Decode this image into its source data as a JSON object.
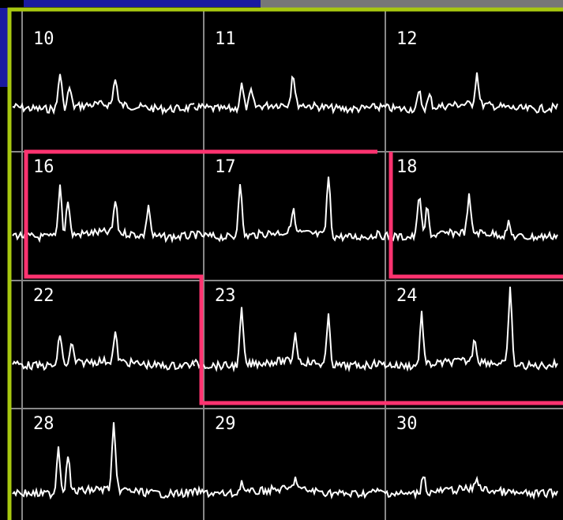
{
  "cells": [
    {
      "label": "10"
    },
    {
      "label": "11"
    },
    {
      "label": "12"
    },
    {
      "label": "16"
    },
    {
      "label": "17"
    },
    {
      "label": "18"
    },
    {
      "label": "22"
    },
    {
      "label": "23"
    },
    {
      "label": "24"
    },
    {
      "label": "28"
    },
    {
      "label": "29"
    },
    {
      "label": "30"
    }
  ]
}
